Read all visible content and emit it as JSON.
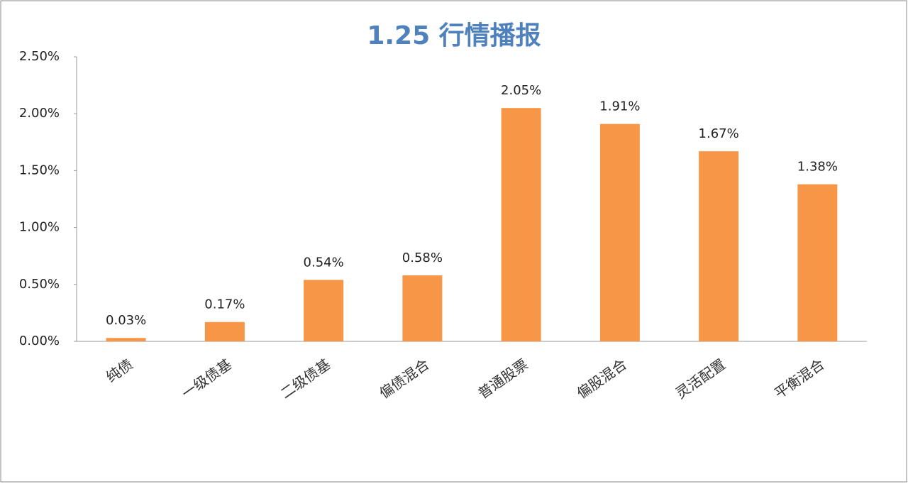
{
  "chart_data": {
    "type": "bar",
    "title": "1.25 行情播报",
    "categories": [
      "纯债",
      "一级债基",
      "二级债基",
      "偏债混合",
      "普通股票",
      "偏股混合",
      "灵活配置",
      "平衡混合"
    ],
    "values": [
      0.03,
      0.17,
      0.54,
      0.58,
      2.05,
      1.91,
      1.67,
      1.38
    ],
    "value_labels": [
      "0.03%",
      "0.17%",
      "0.54%",
      "0.58%",
      "2.05%",
      "1.91%",
      "1.67%",
      "1.38%"
    ],
    "color": "#f79646",
    "ylim": [
      0,
      2.5
    ],
    "yticks": [
      {
        "value": 0,
        "label": "0.00%"
      },
      {
        "value": 0.5,
        "label": "0.50%"
      },
      {
        "value": 1,
        "label": "1.00%"
      },
      {
        "value": 1.5,
        "label": "1.50%"
      },
      {
        "value": 2,
        "label": "2.00%"
      },
      {
        "value": 2.5,
        "label": "2.50%"
      }
    ],
    "grid": false
  }
}
